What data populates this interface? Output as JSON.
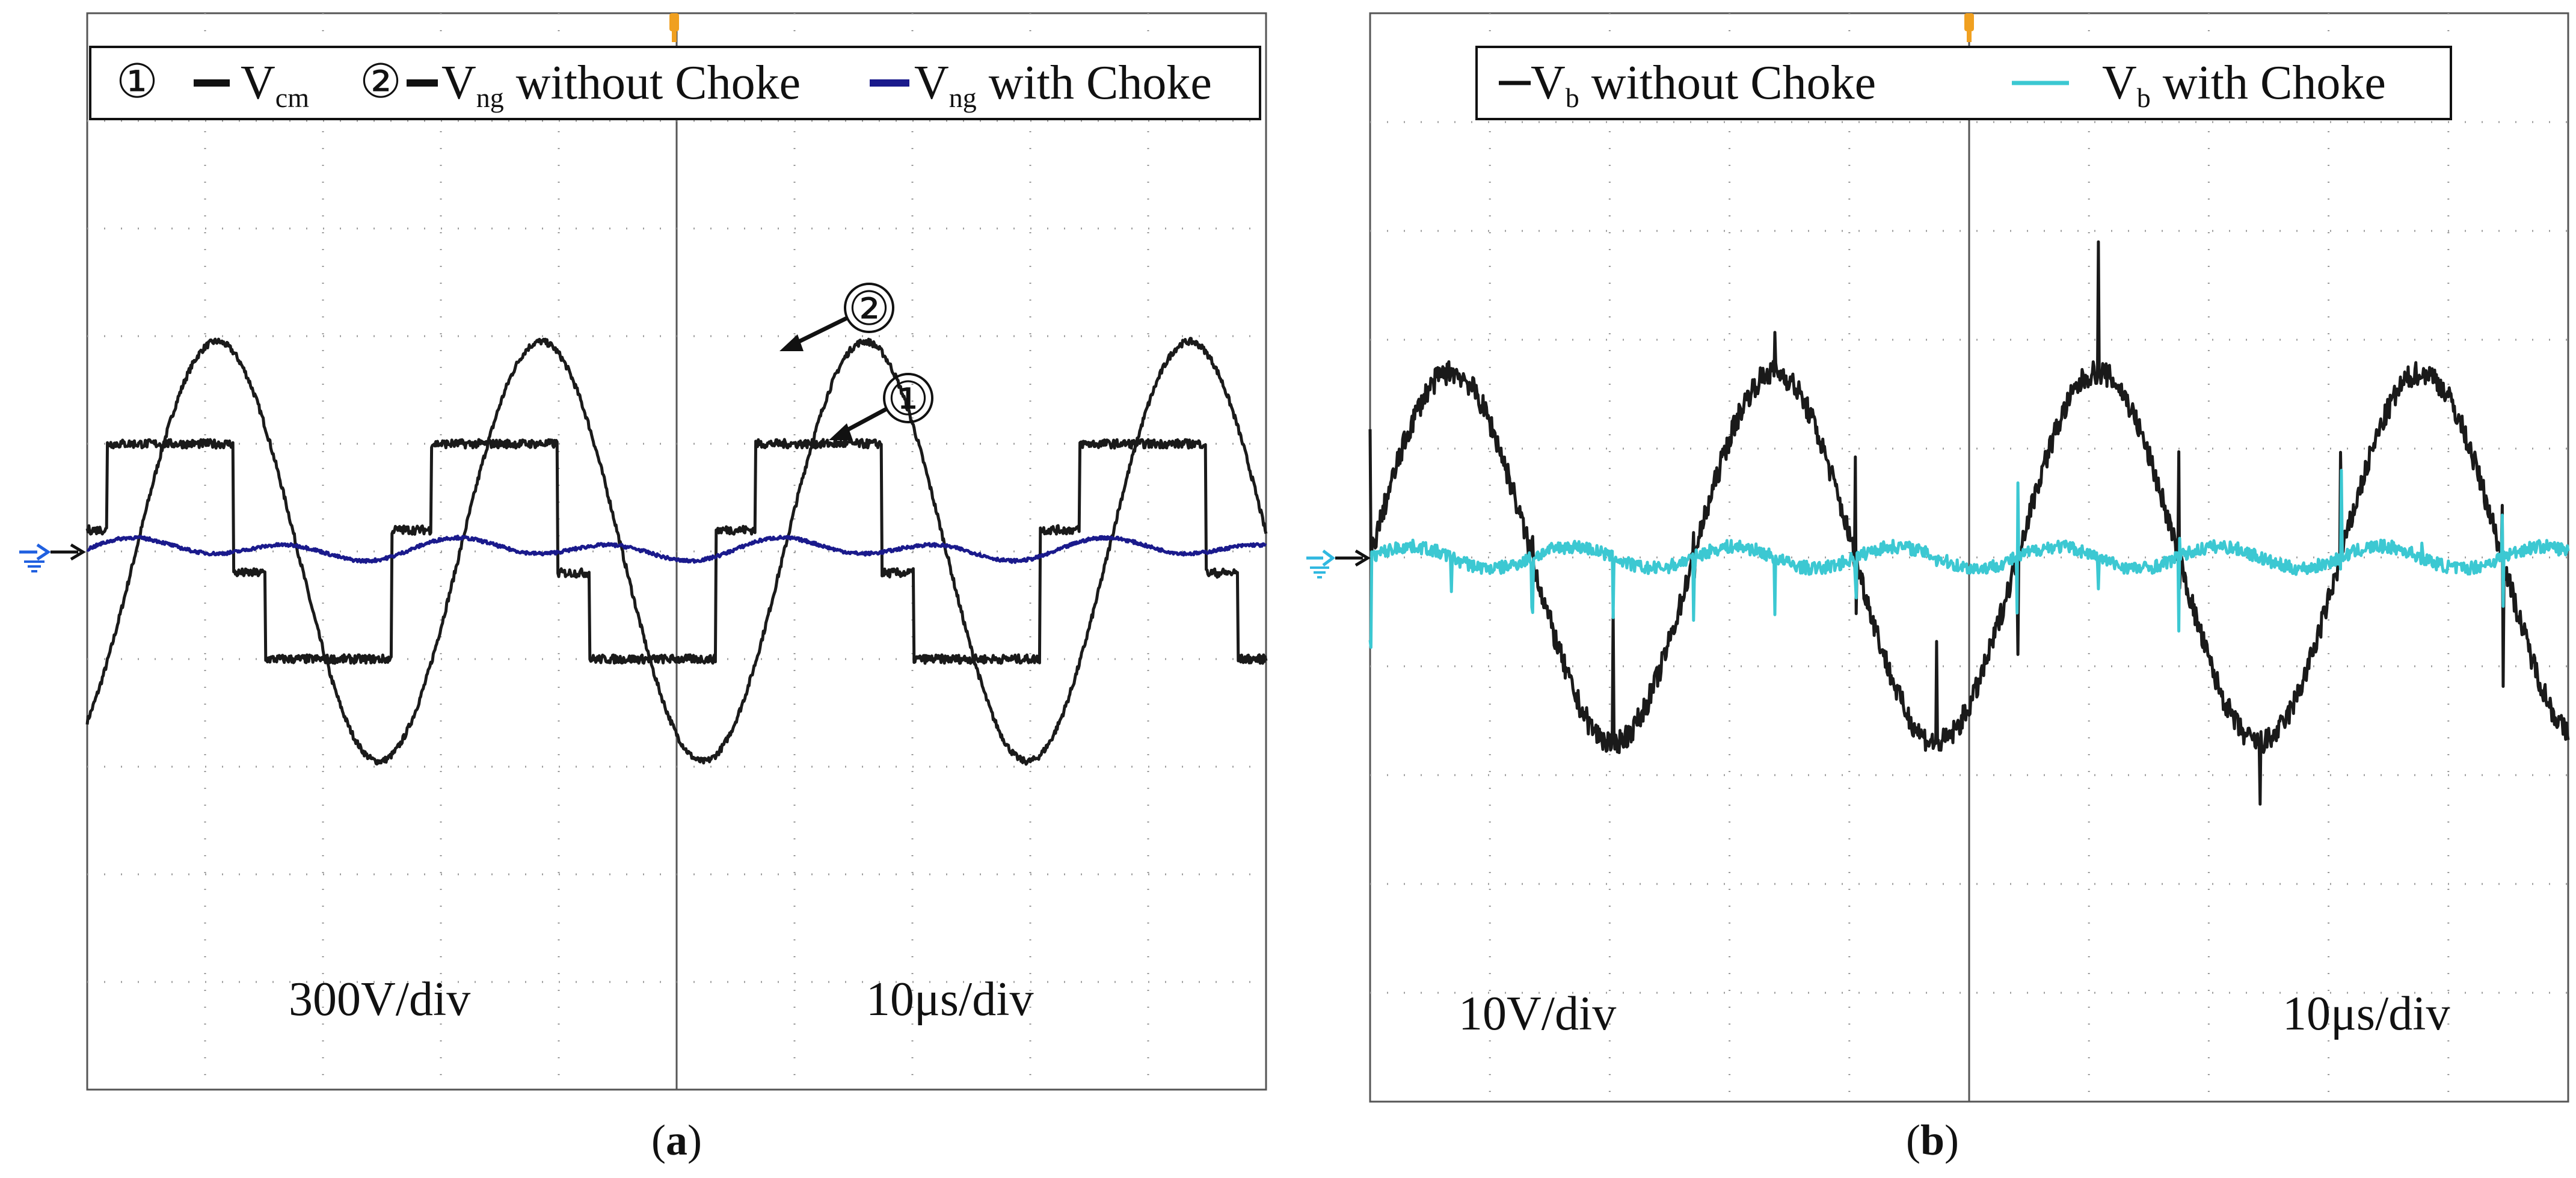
{
  "colors": {
    "trace_black": "#1a1a1a",
    "trace_blue": "#1a1a8c",
    "trace_cyan": "#3cc8d2",
    "trigger_orange": "#f0a020",
    "ground_marker_blue": "#2060e0",
    "ground_marker_cyan": "#30b8e0",
    "grid": "#9a9a9a"
  },
  "chart_data": [
    {
      "type": "line",
      "panel_label": "(a)",
      "panel_letter": "a",
      "legend": {
        "marker_1": "①",
        "marker_2": "②",
        "entries": [
          {
            "id": "vcm",
            "base": "V",
            "sub": "cm",
            "suffix": "",
            "color": "#1a1a1a"
          },
          {
            "id": "vng_without",
            "base": "V",
            "sub": "ng",
            "suffix": " without Choke",
            "color": "#1a1a1a"
          },
          {
            "id": "vng_with",
            "base": "V",
            "sub": "ng",
            "suffix": " with Choke",
            "color": "#1a1a8c"
          }
        ]
      },
      "annotations": [
        {
          "label": "②",
          "target": "V_ng without Choke peak"
        },
        {
          "label": "①",
          "target": "V_cm step level"
        }
      ],
      "vertical_scale": "300V/div",
      "time_scale": "10μs/div",
      "xlim": [
        0,
        100
      ],
      "ylim": [
        -5,
        5
      ],
      "grid": {
        "x_divisions": 10,
        "y_divisions": 10
      },
      "series": [
        {
          "name": "V_ng without Choke",
          "kind": "sine",
          "amplitude_div": 1.95,
          "period_div": 2.75,
          "phase": -0.15,
          "color": "#1a1a1a"
        },
        {
          "name": "V_cm",
          "kind": "staircase",
          "levels_div": [
            1.0,
            0.2,
            -1.0,
            -0.2
          ],
          "period_div": 2.75,
          "color": "#1a1a1a"
        },
        {
          "name": "V_ng with Choke",
          "kind": "ripple",
          "amplitude_div": 0.12,
          "period_div": 2.75,
          "offset_div": 0.02,
          "color": "#1a1a8c"
        }
      ]
    },
    {
      "type": "line",
      "panel_label": "(b)",
      "panel_letter": "b",
      "legend": {
        "entries": [
          {
            "id": "vb_without",
            "base": "V",
            "sub": "b",
            "suffix": " without Choke",
            "color": "#1a1a1a"
          },
          {
            "id": "vb_with",
            "base": "V",
            "sub": "b",
            "suffix": " with Choke",
            "color": "#3cc8d2"
          }
        ]
      },
      "vertical_scale": "10V/div",
      "time_scale": "10μs/div",
      "xlim": [
        0,
        100
      ],
      "ylim": [
        -5,
        5
      ],
      "grid": {
        "x_divisions": 10,
        "y_divisions": 10
      },
      "series": [
        {
          "name": "V_b without Choke",
          "kind": "noisy_sine",
          "amplitude_div": 1.7,
          "period_div": 2.7,
          "phase": 0.0,
          "spike_amplitude_div": 1.4,
          "color": "#1a1a1a"
        },
        {
          "name": "V_b with Choke",
          "kind": "noisy_ripple",
          "amplitude_div": 0.1,
          "period_div": 2.7,
          "spike_amplitude_div": 0.9,
          "color": "#3cc8d2"
        }
      ]
    }
  ]
}
